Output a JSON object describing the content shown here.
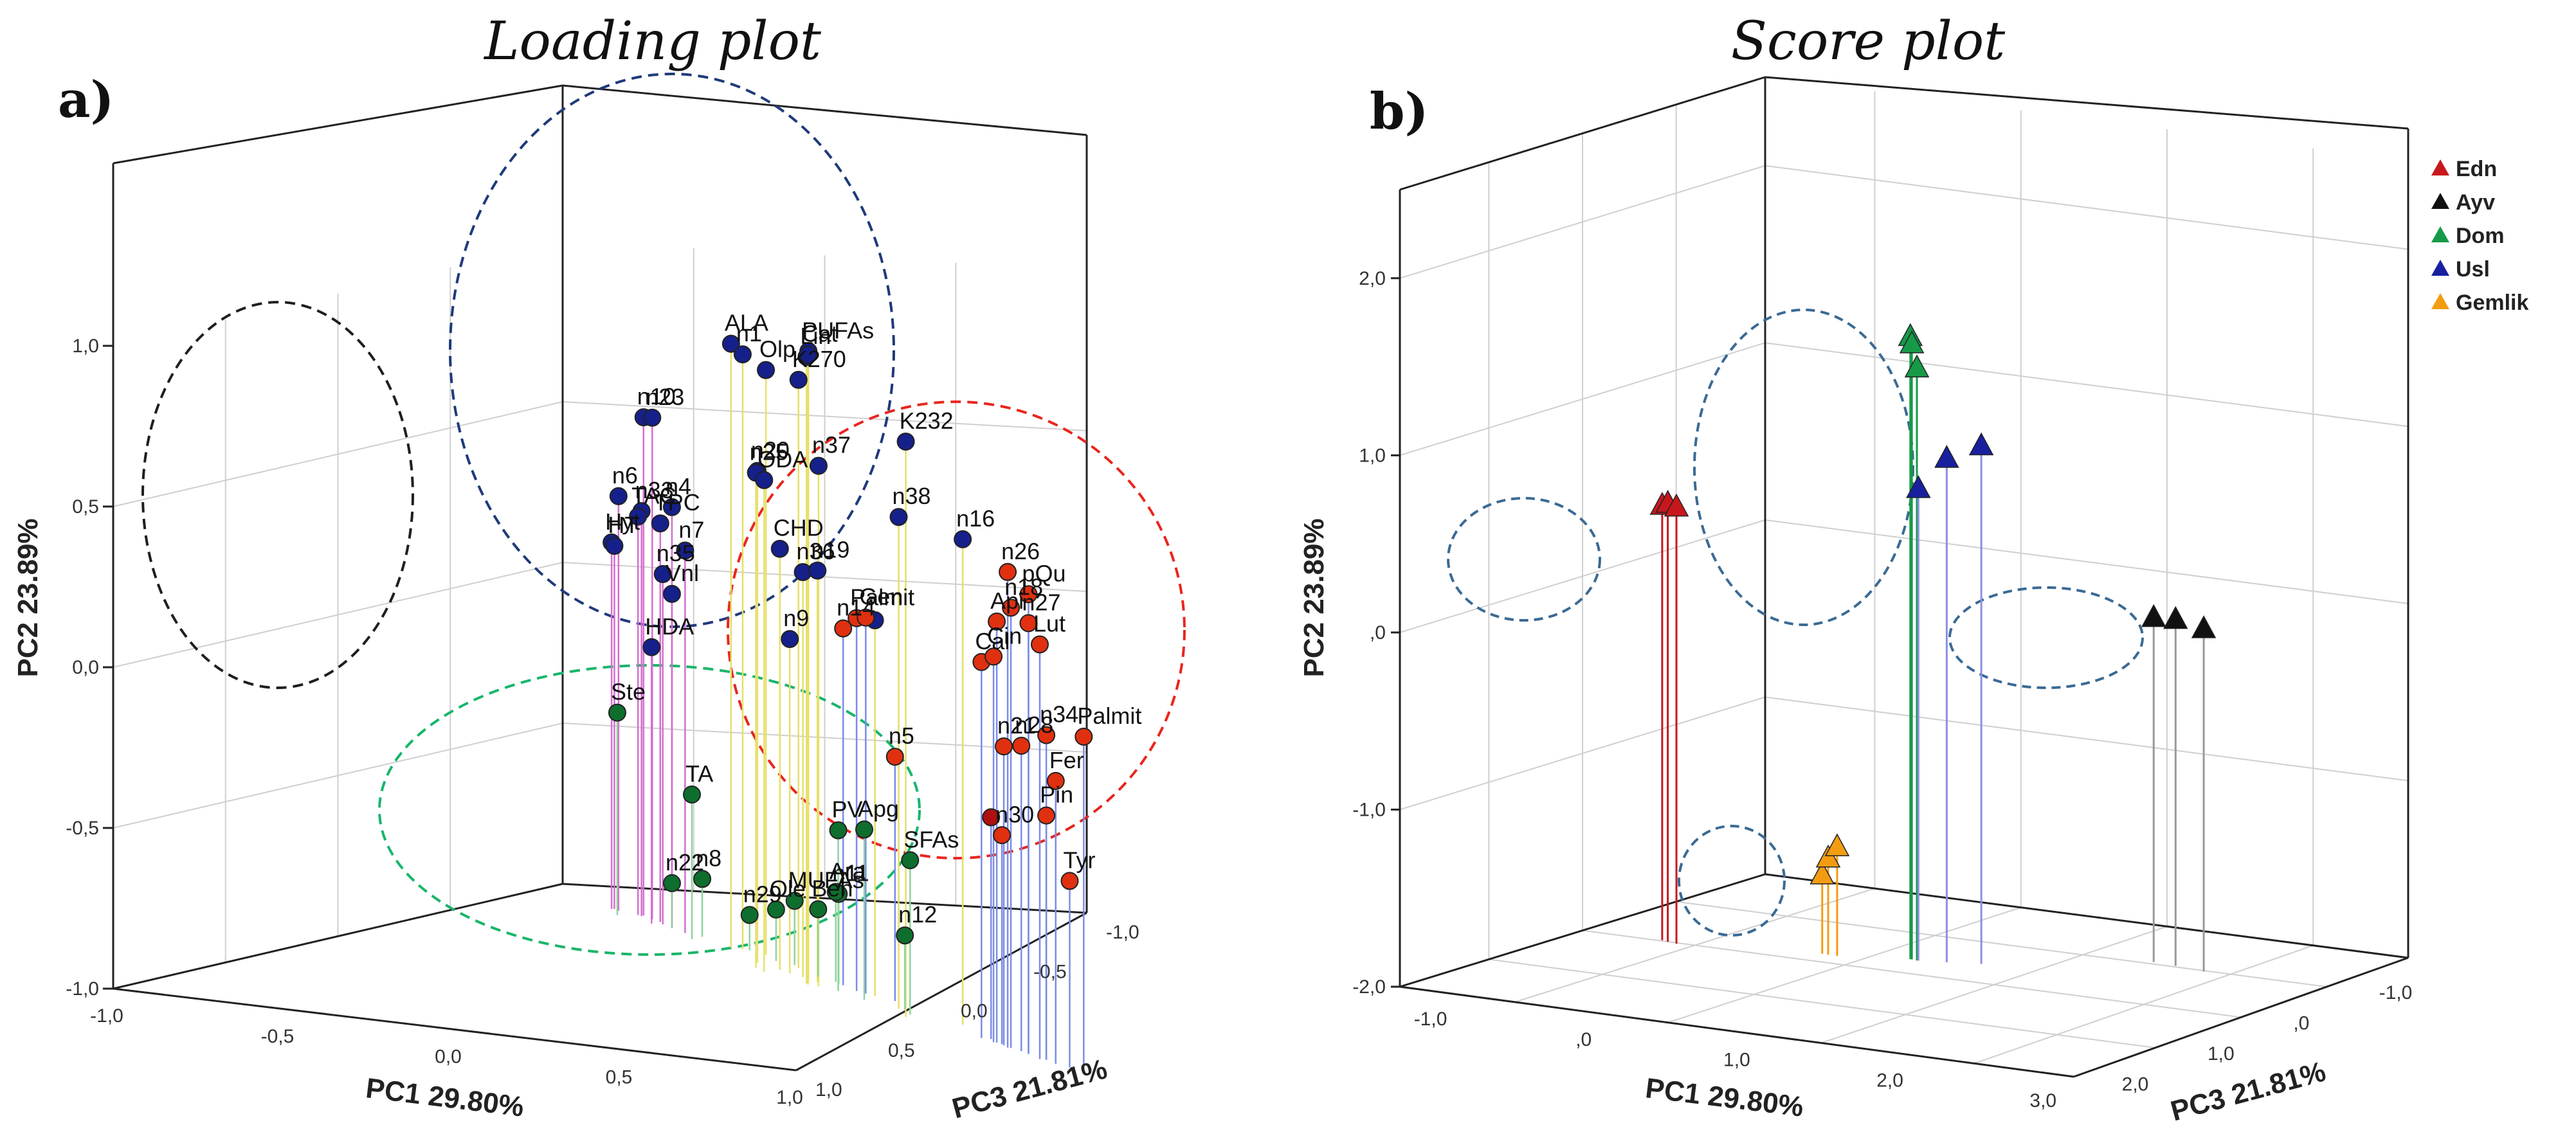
{
  "chart_data": [
    {
      "type": "scatter",
      "subtype": "3d-scatter-with-drop-lines",
      "panel_label": "a)",
      "title": "Loading plot",
      "xlabel": "PC1 29.80%",
      "ylabel": "PC2 23.89%",
      "zlabel": "PC3 21.81%",
      "x_ticks": [
        "-1,0",
        "-0,5",
        "0,0",
        "0,5",
        "1,0"
      ],
      "y_ticks": [
        "-1,0",
        "-0,5",
        "0,0",
        "0,5",
        "1,0"
      ],
      "z_ticks": [
        "1,0",
        "0,5",
        "0,0",
        "-0,5",
        "-1,0"
      ],
      "colors": {
        "navy": "#15208a",
        "red": "#e03010",
        "green": "#0e6e2e",
        "darkred": "#b01010"
      },
      "groups": [
        {
          "color": "#15208a",
          "points": [
            {
              "label": "ALA",
              "x": 0.13,
              "y": 0.88,
              "z": -0.29
            },
            {
              "label": "n1",
              "x": 0.17,
              "y": 0.85,
              "z": -0.29
            },
            {
              "label": "Olp",
              "x": 0.28,
              "y": 0.82,
              "z": -0.24
            },
            {
              "label": "K270",
              "x": 0.46,
              "y": 0.83,
              "z": -0.12
            },
            {
              "label": "PUFAs",
              "x": 0.57,
              "y": 0.96,
              "z": 0.02
            },
            {
              "label": "Lin",
              "x": 0.58,
              "y": 0.95,
              "z": 0.05
            },
            {
              "label": "Cat",
              "x": 0.59,
              "y": 0.96,
              "z": 0.06
            },
            {
              "label": "K232",
              "x": 1.03,
              "y": 0.79,
              "z": 0.31
            },
            {
              "label": "n10",
              "x": -0.4,
              "y": 0.55,
              "z": -0.62
            },
            {
              "label": "n23",
              "x": -0.34,
              "y": 0.56,
              "z": -0.58
            },
            {
              "label": "n20",
              "x": 0.31,
              "y": 0.53,
              "z": -0.14
            },
            {
              "label": "n25",
              "x": 0.34,
              "y": 0.54,
              "z": -0.08
            },
            {
              "label": "ODA",
              "x": 0.39,
              "y": 0.53,
              "z": -0.04
            },
            {
              "label": "n37",
              "x": 0.63,
              "y": 0.62,
              "z": 0.07
            },
            {
              "label": "n38",
              "x": 0.97,
              "y": 0.53,
              "z": 0.23
            },
            {
              "label": "n16",
              "x": 1.22,
              "y": 0.51,
              "z": 0.33
            },
            {
              "label": "n6",
              "x": -0.52,
              "y": 0.29,
              "z": -0.66
            },
            {
              "label": "n33",
              "x": -0.4,
              "y": 0.26,
              "z": -0.61
            },
            {
              "label": "TAC",
              "x": -0.42,
              "y": 0.24,
              "z": -0.62
            },
            {
              "label": "TPC",
              "x": -0.29,
              "y": 0.24,
              "z": -0.55
            },
            {
              "label": "n4",
              "x": -0.2,
              "y": 0.31,
              "z": -0.48
            },
            {
              "label": "n7",
              "x": -0.12,
              "y": 0.19,
              "z": -0.43
            },
            {
              "label": "Hyt",
              "x": -0.56,
              "y": 0.14,
              "z": -0.68
            },
            {
              "label": "HT",
              "x": -0.55,
              "y": 0.13,
              "z": -0.68
            },
            {
              "label": "n35",
              "x": -0.26,
              "y": 0.09,
              "z": -0.52
            },
            {
              "label": "Vnl",
              "x": -0.2,
              "y": 0.04,
              "z": -0.48
            },
            {
              "label": "HDA",
              "x": -0.3,
              "y": -0.14,
              "z": -0.52
            },
            {
              "label": "CHD",
              "x": 0.42,
              "y": 0.31,
              "z": -0.08
            },
            {
              "label": "n36",
              "x": 0.53,
              "y": 0.26,
              "z": -0.02
            },
            {
              "label": "n19",
              "x": 0.6,
              "y": 0.28,
              "z": 0.02
            },
            {
              "label": "n9",
              "x": 0.47,
              "y": 0.04,
              "z": -0.05
            },
            {
              "label": "",
              "x": 0.84,
              "y": 0.17,
              "z": 0.12
            }
          ]
        },
        {
          "color": "#e03010",
          "points": [
            {
              "label": "n26",
              "x": 1.44,
              "y": 0.48,
              "z": 0.52
            },
            {
              "label": "pQu",
              "x": 1.52,
              "y": 0.43,
              "z": 0.56
            },
            {
              "label": "n18",
              "x": 1.45,
              "y": 0.37,
              "z": 0.52
            },
            {
              "label": "n27",
              "x": 1.52,
              "y": 0.34,
              "z": 0.56
            },
            {
              "label": "Lut",
              "x": 1.57,
              "y": 0.29,
              "z": 0.6
            },
            {
              "label": "Api",
              "x": 1.39,
              "y": 0.31,
              "z": 0.48
            },
            {
              "label": "Palmit",
              "x": 0.76,
              "y": 0.16,
              "z": 0.08
            },
            {
              "label": "Gen",
              "x": 0.8,
              "y": 0.17,
              "z": 0.1
            },
            {
              "label": "Cal",
              "x": 1.33,
              "y": 0.17,
              "z": 0.45
            },
            {
              "label": "Cin",
              "x": 1.38,
              "y": 0.2,
              "z": 0.48
            },
            {
              "label": "n14",
              "x": 0.69,
              "y": 0.11,
              "z": 0.03
            },
            {
              "label": "Palmit",
              "x": 1.73,
              "y": 0.04,
              "z": 0.67
            },
            {
              "label": "n34",
              "x": 1.59,
              "y": 0.01,
              "z": 0.6
            },
            {
              "label": "n28",
              "x": 1.49,
              "y": -0.05,
              "z": 0.54
            },
            {
              "label": "n21",
              "x": 1.42,
              "y": -0.07,
              "z": 0.5
            },
            {
              "label": "Fer",
              "x": 1.63,
              "y": -0.12,
              "z": 0.63
            },
            {
              "label": "Pin",
              "x": 1.59,
              "y": -0.24,
              "z": 0.6
            },
            {
              "label": "n30",
              "x": 1.41,
              "y": -0.35,
              "z": 0.49
            },
            {
              "label": "Tyr",
              "x": 1.68,
              "y": -0.42,
              "z": 0.65
            },
            {
              "label": "n5",
              "x": 0.92,
              "y": -0.24,
              "z": 0.15
            }
          ]
        },
        {
          "color": "#b01010",
          "points": [
            {
              "label": "",
              "x": 1.36,
              "y": -0.31,
              "z": 0.45
            }
          ]
        },
        {
          "color": "#0e6e2e",
          "points": [
            {
              "label": "Ste",
              "x": -0.48,
              "y": -0.37,
              "z": -0.6
            },
            {
              "label": "TA",
              "x": -0.05,
              "y": -0.55,
              "z": -0.36
            },
            {
              "label": "PV",
              "x": 0.71,
              "y": -0.5,
              "z": 0.1
            },
            {
              "label": "Apg",
              "x": 0.83,
              "y": -0.47,
              "z": 0.17
            },
            {
              "label": "SFAs",
              "x": 1.03,
              "y": -0.52,
              "z": 0.28
            },
            {
              "label": "n11",
              "x": 0.67,
              "y": -0.72,
              "z": 0.02
            },
            {
              "label": "Ara",
              "x": 0.65,
              "y": -0.72,
              "z": 0.0
            },
            {
              "label": "n12",
              "x": 0.99,
              "y": -0.77,
              "z": 0.23
            },
            {
              "label": "Beh",
              "x": 0.57,
              "y": -0.79,
              "z": -0.04
            },
            {
              "label": "MUFAs",
              "x": 0.43,
              "y": -0.8,
              "z": -0.15
            },
            {
              "label": "Ole",
              "x": 0.35,
              "y": -0.84,
              "z": -0.18
            },
            {
              "label": "n29",
              "x": 0.2,
              "y": -0.89,
              "z": -0.28
            },
            {
              "label": "n8",
              "x": -0.04,
              "y": -0.82,
              "z": -0.4
            },
            {
              "label": "n22",
              "x": -0.2,
              "y": -0.86,
              "z": -0.48
            }
          ]
        }
      ],
      "ellipses": [
        {
          "color": "#1f1f1f",
          "group": "black"
        },
        {
          "color": "#1e3a7a",
          "group": "navy"
        },
        {
          "color": "#e8261e",
          "group": "red"
        },
        {
          "color": "#19b56a",
          "group": "green"
        }
      ]
    },
    {
      "type": "scatter",
      "subtype": "3d-scatter-with-drop-lines",
      "panel_label": "b)",
      "title": "Score plot",
      "xlabel": "PC1 29.80%",
      "ylabel": "PC2 23.89%",
      "zlabel": "PC3 21.81%",
      "x_ticks": [
        "-1,0",
        ",0",
        "1,0",
        "2,0",
        "3,0"
      ],
      "y_ticks": [
        "-2,0",
        "-1,0",
        ",0",
        "1,0",
        "2,0"
      ],
      "z_ticks": [
        "2,0",
        "1,0",
        ",0",
        "-1,0"
      ],
      "legend_position": "top-right",
      "series": [
        {
          "name": "Edn",
          "color": "#c8171c",
          "points": [
            {
              "x": -0.73,
              "y": 0.46,
              "z": 0.38
            },
            {
              "x": -0.68,
              "y": 0.48,
              "z": 0.4
            },
            {
              "x": -0.61,
              "y": 0.47,
              "z": 0.42
            }
          ]
        },
        {
          "name": "Ayv",
          "color": "#111111",
          "points": [
            {
              "x": 1.95,
              "y": -0.05,
              "z": -0.65
            },
            {
              "x": 2.11,
              "y": -0.04,
              "z": -0.63
            },
            {
              "x": 2.33,
              "y": -0.06,
              "z": -0.58
            }
          ]
        },
        {
          "name": "Dom",
          "color": "#169a48",
          "points": [
            {
              "x": 0.73,
              "y": 1.52,
              "z": 0.05
            },
            {
              "x": 0.74,
              "y": 1.48,
              "z": 0.05
            },
            {
              "x": 0.78,
              "y": 1.35,
              "z": 0.06
            }
          ]
        },
        {
          "name": "Usl",
          "color": "#1820a0",
          "points": [
            {
              "x": 0.79,
              "y": 0.67,
              "z": 0.06
            },
            {
              "x": 0.95,
              "y": 0.85,
              "z": 0.01
            },
            {
              "x": 1.14,
              "y": 0.93,
              "z": -0.06
            }
          ]
        },
        {
          "name": "Gemlik",
          "color": "#f39c12",
          "points": [
            {
              "x": 0.23,
              "y": -1.55,
              "z": 0.2
            },
            {
              "x": 0.27,
              "y": -1.45,
              "z": 0.2
            },
            {
              "x": 0.33,
              "y": -1.38,
              "z": 0.2
            }
          ]
        }
      ],
      "ellipse_color": "#3a6a94"
    }
  ]
}
